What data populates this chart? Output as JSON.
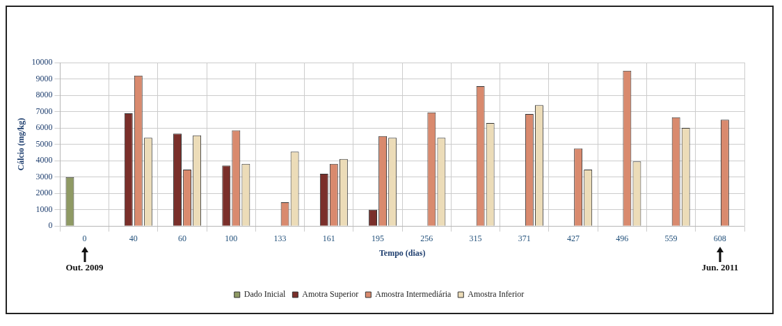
{
  "chart_data": {
    "type": "bar",
    "xlabel": "Tempo (dias)",
    "ylabel": "Cálcio (mg/kg)",
    "categories": [
      "0",
      "40",
      "60",
      "100",
      "133",
      "161",
      "195",
      "256",
      "315",
      "371",
      "427",
      "496",
      "559",
      "608"
    ],
    "series": [
      {
        "name": "Dado Inicial",
        "color": "#8f9a64",
        "values": [
          3000,
          null,
          null,
          null,
          null,
          null,
          null,
          null,
          null,
          null,
          null,
          null,
          null,
          null
        ]
      },
      {
        "name": "Amotra Superior",
        "color": "#7a2f2a",
        "values": [
          null,
          6900,
          5650,
          3700,
          null,
          3200,
          1000,
          null,
          null,
          null,
          null,
          null,
          null,
          null
        ]
      },
      {
        "name": "Amostra Intermediária",
        "color": "#d98a6e",
        "values": [
          null,
          9200,
          3450,
          5850,
          1450,
          3800,
          5500,
          6950,
          8550,
          6850,
          4750,
          9500,
          6650,
          6500
        ]
      },
      {
        "name": "Amostra Inferior",
        "color": "#ecdcb8",
        "values": [
          null,
          5400,
          5550,
          3800,
          4550,
          4100,
          5400,
          5400,
          6300,
          7400,
          3450,
          3950,
          6000,
          null
        ]
      }
    ],
    "ylim": [
      0,
      10000
    ],
    "yticks": [
      0,
      1000,
      2000,
      3000,
      4000,
      5000,
      6000,
      7000,
      8000,
      9000,
      10000
    ],
    "grid": true,
    "legend": "bottom",
    "annotations": [
      "Out. 2009",
      "Jun. 2011"
    ]
  }
}
